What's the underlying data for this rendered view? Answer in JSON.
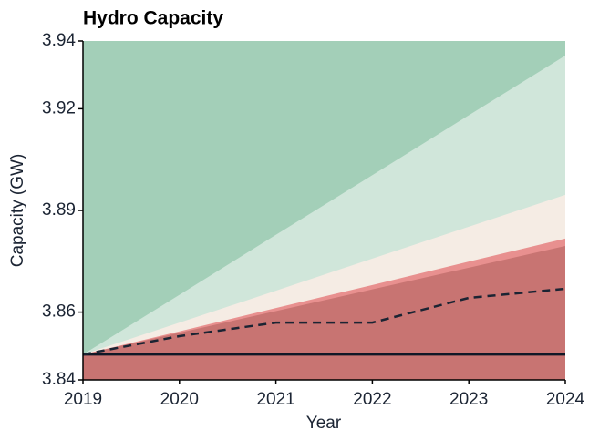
{
  "chart_data": {
    "type": "fan",
    "title": "Hydro Capacity",
    "xlabel": "Year",
    "ylabel": "Capacity (GW)",
    "x": [
      2019,
      2020,
      2021,
      2022,
      2023,
      2024
    ],
    "xlim": [
      2019,
      2024
    ],
    "xticks": [
      2019,
      2020,
      2021,
      2022,
      2023,
      2024
    ],
    "ylim": [
      3.84,
      3.94
    ],
    "yticks": [
      3.84,
      3.86,
      3.89,
      3.92,
      3.94
    ],
    "background": "#a3cfb8",
    "bands": [
      {
        "color": "#d0e6da",
        "values": [
          3.8475,
          3.8651,
          3.8828,
          3.9004,
          3.9181,
          3.9357
        ]
      },
      {
        "color": "#f5ece4",
        "values": [
          3.8475,
          3.8569,
          3.8663,
          3.8758,
          3.8852,
          3.8946
        ]
      },
      {
        "color": "#e8908f",
        "values": [
          3.8475,
          3.8543,
          3.8612,
          3.868,
          3.8749,
          3.8817
        ]
      },
      {
        "color": "#c87472",
        "values": [
          3.8475,
          3.8539,
          3.8603,
          3.8667,
          3.8731,
          3.8795
        ]
      }
    ],
    "baseline": 3.8475,
    "baseline_color": "#111827",
    "line": {
      "color": "#1b2433",
      "values": [
        3.8475,
        3.8529,
        3.8569,
        3.8569,
        3.8642,
        3.8669
      ]
    }
  }
}
